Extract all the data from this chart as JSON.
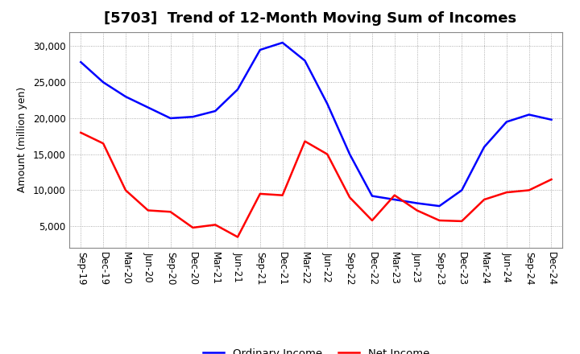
{
  "title": "[5703]  Trend of 12-Month Moving Sum of Incomes",
  "ylabel": "Amount (million yen)",
  "background_color": "#ffffff",
  "plot_bg_color": "#ffffff",
  "grid_color": "#999999",
  "x_labels": [
    "Sep-19",
    "Dec-19",
    "Mar-20",
    "Jun-20",
    "Sep-20",
    "Dec-20",
    "Mar-21",
    "Jun-21",
    "Sep-21",
    "Dec-21",
    "Mar-22",
    "Jun-22",
    "Sep-22",
    "Dec-22",
    "Mar-23",
    "Jun-23",
    "Sep-23",
    "Dec-23",
    "Mar-24",
    "Jun-24",
    "Sep-24",
    "Dec-24"
  ],
  "ordinary_income": [
    27800,
    25000,
    23000,
    21500,
    20000,
    20200,
    21000,
    24000,
    29500,
    30500,
    28000,
    22000,
    15000,
    9200,
    8700,
    8200,
    7800,
    10000,
    16000,
    19500,
    20500,
    19800
  ],
  "net_income": [
    18000,
    16500,
    10000,
    7200,
    7000,
    4800,
    5200,
    3500,
    9500,
    9300,
    16800,
    15000,
    9000,
    5800,
    9300,
    7200,
    5800,
    5700,
    8700,
    9700,
    10000,
    11500
  ],
  "ordinary_color": "#0000ff",
  "net_color": "#ff0000",
  "ylim": [
    2000,
    32000
  ],
  "yticks": [
    5000,
    10000,
    15000,
    20000,
    25000,
    30000
  ],
  "line_width": 1.8,
  "title_fontsize": 13,
  "tick_fontsize": 8.5,
  "legend_labels": [
    "Ordinary Income",
    "Net Income"
  ]
}
